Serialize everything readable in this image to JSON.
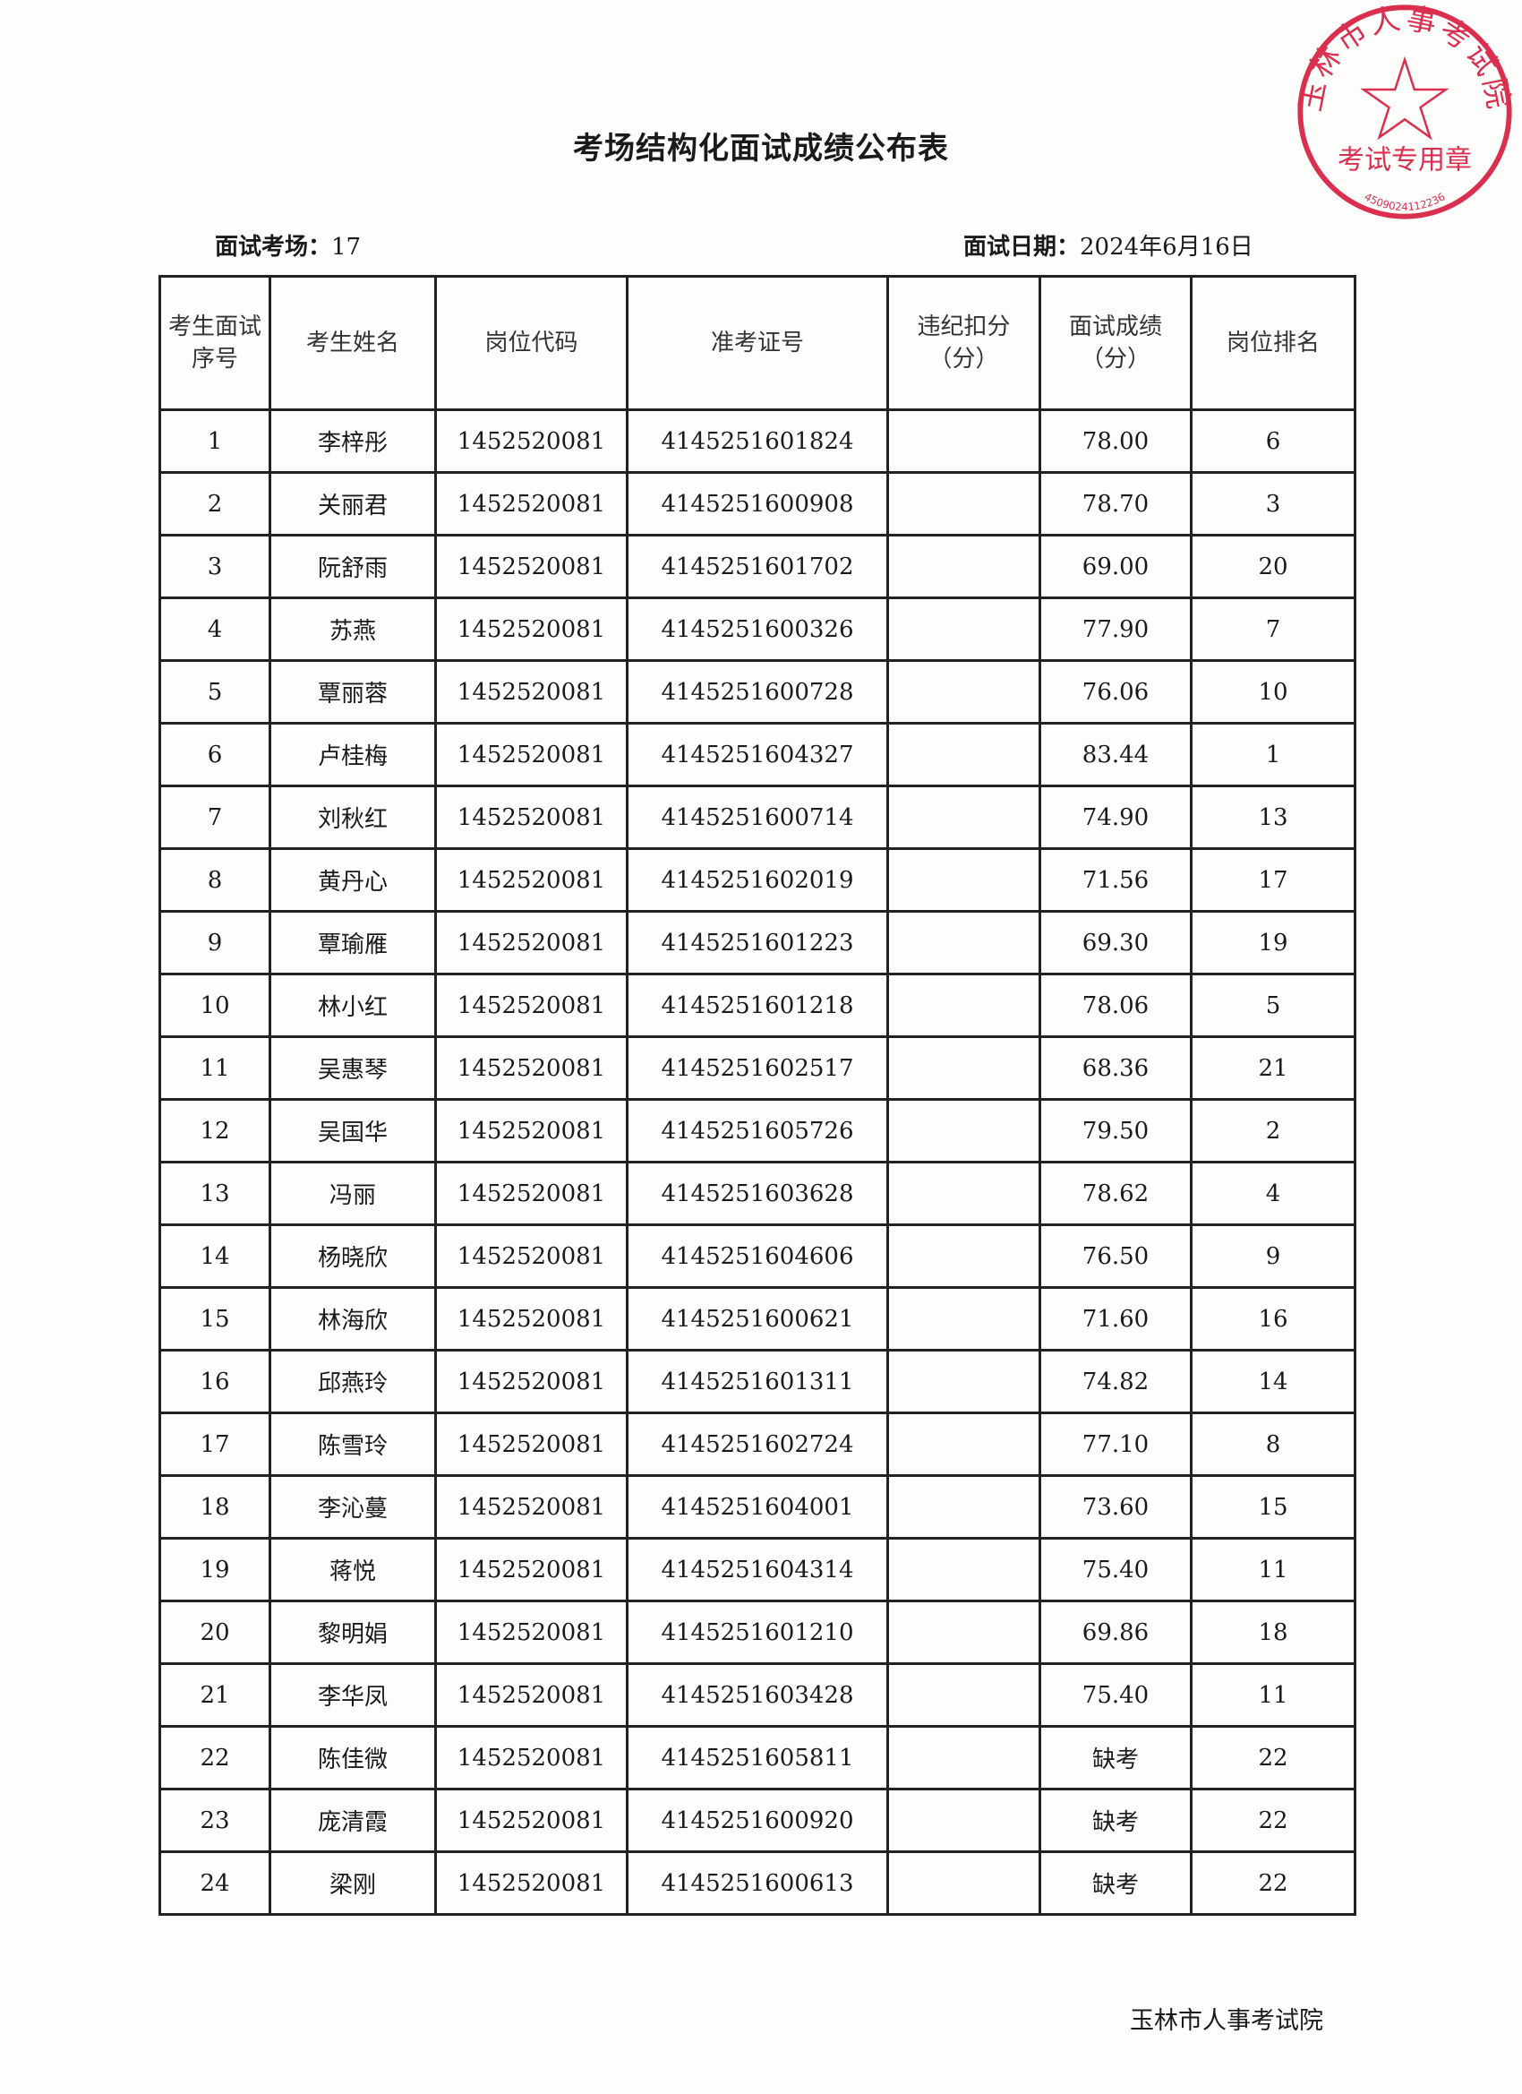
{
  "title": "考场结构化面试成绩公布表",
  "info": {
    "room_label": "面试考场：",
    "room_value": "17",
    "date_label": "面试日期：",
    "date_value": "2024年6月16日"
  },
  "table": {
    "headers": [
      "考生面试序号",
      "考生姓名",
      "岗位代码",
      "准考证号",
      "违纪扣分（分）",
      "面试成绩（分）",
      "岗位排名"
    ],
    "rows": [
      {
        "seq": "1",
        "name": "李梓彤",
        "post": "1452520081",
        "ticket": "4145251601824",
        "deduct": "",
        "score": "78.00",
        "rank": "6"
      },
      {
        "seq": "2",
        "name": "关丽君",
        "post": "1452520081",
        "ticket": "4145251600908",
        "deduct": "",
        "score": "78.70",
        "rank": "3"
      },
      {
        "seq": "3",
        "name": "阮舒雨",
        "post": "1452520081",
        "ticket": "4145251601702",
        "deduct": "",
        "score": "69.00",
        "rank": "20"
      },
      {
        "seq": "4",
        "name": "苏燕",
        "post": "1452520081",
        "ticket": "4145251600326",
        "deduct": "",
        "score": "77.90",
        "rank": "7"
      },
      {
        "seq": "5",
        "name": "覃丽蓉",
        "post": "1452520081",
        "ticket": "4145251600728",
        "deduct": "",
        "score": "76.06",
        "rank": "10"
      },
      {
        "seq": "6",
        "name": "卢桂梅",
        "post": "1452520081",
        "ticket": "4145251604327",
        "deduct": "",
        "score": "83.44",
        "rank": "1"
      },
      {
        "seq": "7",
        "name": "刘秋红",
        "post": "1452520081",
        "ticket": "4145251600714",
        "deduct": "",
        "score": "74.90",
        "rank": "13"
      },
      {
        "seq": "8",
        "name": "黄丹心",
        "post": "1452520081",
        "ticket": "4145251602019",
        "deduct": "",
        "score": "71.56",
        "rank": "17"
      },
      {
        "seq": "9",
        "name": "覃瑜雁",
        "post": "1452520081",
        "ticket": "4145251601223",
        "deduct": "",
        "score": "69.30",
        "rank": "19"
      },
      {
        "seq": "10",
        "name": "林小红",
        "post": "1452520081",
        "ticket": "4145251601218",
        "deduct": "",
        "score": "78.06",
        "rank": "5"
      },
      {
        "seq": "11",
        "name": "吴惠琴",
        "post": "1452520081",
        "ticket": "4145251602517",
        "deduct": "",
        "score": "68.36",
        "rank": "21"
      },
      {
        "seq": "12",
        "name": "吴国华",
        "post": "1452520081",
        "ticket": "4145251605726",
        "deduct": "",
        "score": "79.50",
        "rank": "2"
      },
      {
        "seq": "13",
        "name": "冯丽",
        "post": "1452520081",
        "ticket": "4145251603628",
        "deduct": "",
        "score": "78.62",
        "rank": "4"
      },
      {
        "seq": "14",
        "name": "杨晓欣",
        "post": "1452520081",
        "ticket": "4145251604606",
        "deduct": "",
        "score": "76.50",
        "rank": "9"
      },
      {
        "seq": "15",
        "name": "林海欣",
        "post": "1452520081",
        "ticket": "4145251600621",
        "deduct": "",
        "score": "71.60",
        "rank": "16"
      },
      {
        "seq": "16",
        "name": "邱燕玲",
        "post": "1452520081",
        "ticket": "4145251601311",
        "deduct": "",
        "score": "74.82",
        "rank": "14"
      },
      {
        "seq": "17",
        "name": "陈雪玲",
        "post": "1452520081",
        "ticket": "4145251602724",
        "deduct": "",
        "score": "77.10",
        "rank": "8"
      },
      {
        "seq": "18",
        "name": "李沁蔓",
        "post": "1452520081",
        "ticket": "4145251604001",
        "deduct": "",
        "score": "73.60",
        "rank": "15"
      },
      {
        "seq": "19",
        "name": "蒋悦",
        "post": "1452520081",
        "ticket": "4145251604314",
        "deduct": "",
        "score": "75.40",
        "rank": "11"
      },
      {
        "seq": "20",
        "name": "黎明娟",
        "post": "1452520081",
        "ticket": "4145251601210",
        "deduct": "",
        "score": "69.86",
        "rank": "18"
      },
      {
        "seq": "21",
        "name": "李华凤",
        "post": "1452520081",
        "ticket": "4145251603428",
        "deduct": "",
        "score": "75.40",
        "rank": "11"
      },
      {
        "seq": "22",
        "name": "陈佳微",
        "post": "1452520081",
        "ticket": "4145251605811",
        "deduct": "",
        "score": "缺考",
        "rank": "22"
      },
      {
        "seq": "23",
        "name": "庞清霞",
        "post": "1452520081",
        "ticket": "4145251600920",
        "deduct": "",
        "score": "缺考",
        "rank": "22"
      },
      {
        "seq": "24",
        "name": "梁刚",
        "post": "1452520081",
        "ticket": "4145251600613",
        "deduct": "",
        "score": "缺考",
        "rank": "22"
      }
    ]
  },
  "footer": "玉林市人事考试院",
  "stamp": {
    "top_text": "玉林市人事考试院",
    "bottom_text": "考试专用章",
    "code": "4509024112236",
    "color": "#d9304f"
  }
}
